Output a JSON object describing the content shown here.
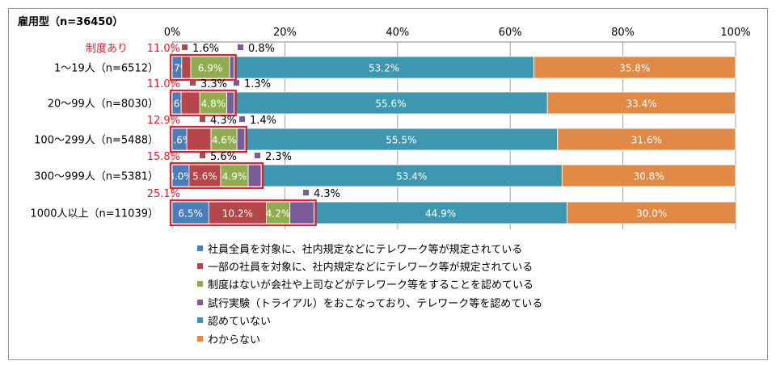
{
  "title": "雇用型（n=36450）",
  "chart_data": {
    "type": "bar",
    "orientation": "horizontal",
    "stacked": "100%",
    "xlim": [
      0,
      100
    ],
    "xticks": [
      "0%",
      "20%",
      "40%",
      "60%",
      "80%",
      "100%"
    ],
    "grid": true,
    "legend_placement": "bottom",
    "categories": [
      "1～19人（n=6512）",
      "20～99人（n=8030）",
      "100～299人（n=5488）",
      "300～999人（n=5381）",
      "1000人以上（n=11039）"
    ],
    "series": [
      {
        "name": "社員全員を対象に、社内規定などにテレワーク等が規定されている",
        "color": "#4a7ebb",
        "values": [
          1.7,
          1.6,
          2.6,
          3.0,
          6.5
        ]
      },
      {
        "name": "一部の社員を対象に、社内規定などにテレワーク等が規定されている",
        "color": "#b5474a",
        "values": [
          1.6,
          3.3,
          4.3,
          5.6,
          10.2
        ]
      },
      {
        "name": "制度はないが会社や上司などがテレワーク等をすることを認めている",
        "color": "#8fad4f",
        "values": [
          6.9,
          4.8,
          4.6,
          4.9,
          4.2
        ]
      },
      {
        "name": "試行実験（トライアル）をおこなっており、テレワーク等を認めている",
        "color": "#7a5c9b",
        "values": [
          0.8,
          1.3,
          1.4,
          2.3,
          4.3
        ]
      },
      {
        "name": "認めていない",
        "color": "#3e97b0",
        "values": [
          53.2,
          55.6,
          55.5,
          53.4,
          44.9
        ]
      },
      {
        "name": "わからない",
        "color": "#e08a46",
        "values": [
          35.8,
          33.4,
          31.6,
          30.8,
          30.0
        ]
      }
    ],
    "annotations": {
      "system_label": "制度あり",
      "system_totals": [
        "11.0%",
        "11.0%",
        "12.9%",
        "15.8%",
        "25.1%"
      ],
      "highlight_color": "#e0202a"
    }
  }
}
